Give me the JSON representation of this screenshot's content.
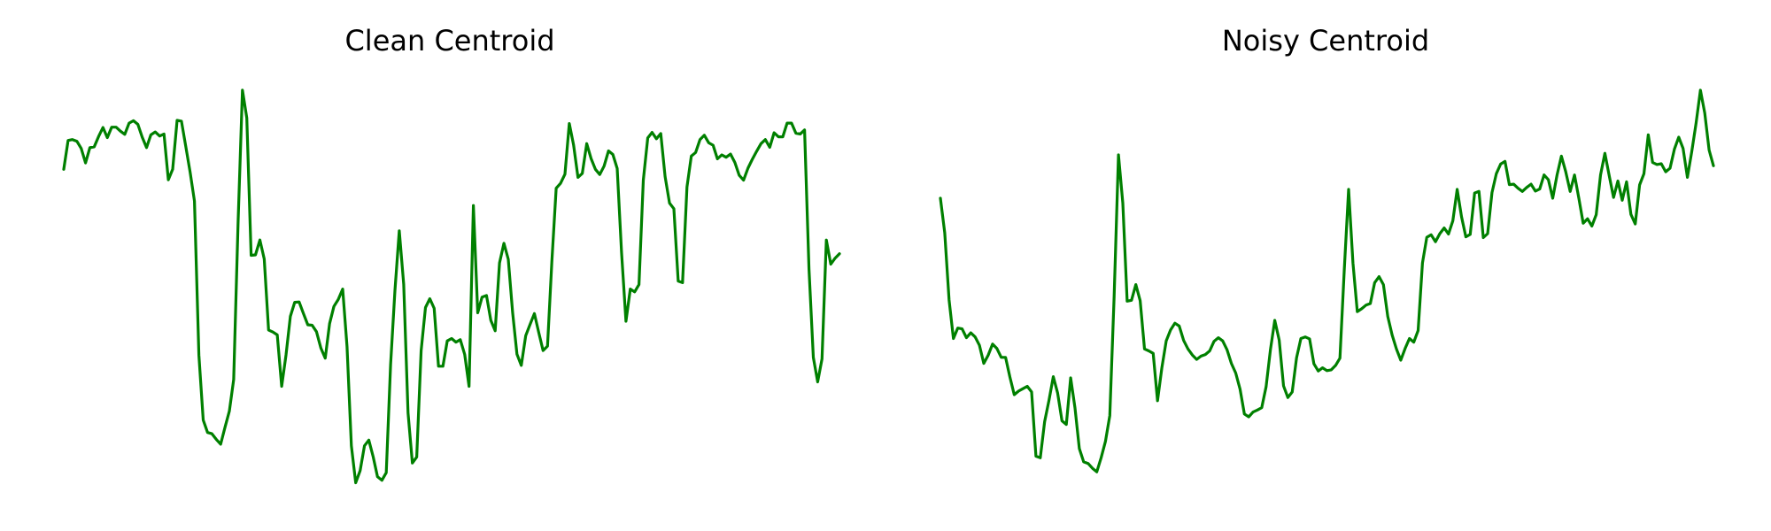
{
  "chart_data": [
    {
      "type": "line",
      "title": "Clean Centroid",
      "xlabel": "",
      "ylabel": "",
      "axes_visible": false,
      "grid": false,
      "color": "#008000",
      "ylim": [
        0,
        1
      ],
      "series": [
        {
          "values": [
            0.79,
            0.862,
            0.864,
            0.86,
            0.842,
            0.806,
            0.844,
            0.846,
            0.872,
            0.894,
            0.869,
            0.895,
            0.895,
            0.885,
            0.877,
            0.905,
            0.911,
            0.902,
            0.87,
            0.844,
            0.876,
            0.883,
            0.873,
            0.878,
            0.764,
            0.79,
            0.912,
            0.91,
            0.847,
            0.783,
            0.711,
            0.328,
            0.166,
            0.135,
            0.132,
            0.118,
            0.106,
            0.148,
            0.188,
            0.267,
            0.66,
            0.987,
            0.918,
            0.576,
            0.577,
            0.614,
            0.567,
            0.39,
            0.385,
            0.378,
            0.25,
            0.328,
            0.424,
            0.459,
            0.46,
            0.431,
            0.403,
            0.402,
            0.386,
            0.345,
            0.32,
            0.406,
            0.449,
            0.466,
            0.492,
            0.349,
            0.102,
            0.01,
            0.04,
            0.102,
            0.116,
            0.075,
            0.025,
            0.016,
            0.035,
            0.304,
            0.488,
            0.637,
            0.504,
            0.184,
            0.059,
            0.074,
            0.339,
            0.446,
            0.468,
            0.444,
            0.3,
            0.3,
            0.363,
            0.369,
            0.36,
            0.366,
            0.329,
            0.25,
            0.7,
            0.433,
            0.472,
            0.476,
            0.414,
            0.388,
            0.557,
            0.606,
            0.566,
            0.434,
            0.33,
            0.302,
            0.376,
            0.404,
            0.431,
            0.384,
            0.339,
            0.35,
            0.56,
            0.743,
            0.755,
            0.778,
            0.904,
            0.85,
            0.77,
            0.78,
            0.854,
            0.817,
            0.79,
            0.777,
            0.798,
            0.836,
            0.827,
            0.792,
            0.584,
            0.412,
            0.492,
            0.485,
            0.503,
            0.763,
            0.868,
            0.882,
            0.866,
            0.879,
            0.772,
            0.706,
            0.692,
            0.512,
            0.508,
            0.746,
            0.823,
            0.832,
            0.864,
            0.875,
            0.856,
            0.85,
            0.816,
            0.826,
            0.82,
            0.828,
            0.807,
            0.775,
            0.763,
            0.793,
            0.815,
            0.835,
            0.854,
            0.864,
            0.845,
            0.881,
            0.871,
            0.871,
            0.905,
            0.905,
            0.88,
            0.878,
            0.888,
            0.542,
            0.322,
            0.261,
            0.318,
            0.614,
            0.554,
            0.569,
            0.58
          ]
        }
      ]
    },
    {
      "type": "line",
      "title": "Noisy Centroid",
      "xlabel": "",
      "ylabel": "",
      "axes_visible": false,
      "grid": false,
      "color": "#008000",
      "ylim": [
        0,
        1
      ],
      "series": [
        {
          "values": [
            0.718,
            0.632,
            0.465,
            0.369,
            0.395,
            0.393,
            0.371,
            0.383,
            0.373,
            0.352,
            0.307,
            0.327,
            0.355,
            0.344,
            0.322,
            0.322,
            0.273,
            0.229,
            0.238,
            0.244,
            0.25,
            0.236,
            0.076,
            0.072,
            0.162,
            0.215,
            0.274,
            0.233,
            0.164,
            0.155,
            0.271,
            0.196,
            0.095,
            0.062,
            0.058,
            0.046,
            0.037,
            0.072,
            0.113,
            0.177,
            0.474,
            0.826,
            0.706,
            0.462,
            0.464,
            0.503,
            0.463,
            0.343,
            0.338,
            0.332,
            0.214,
            0.296,
            0.363,
            0.39,
            0.407,
            0.4,
            0.364,
            0.343,
            0.328,
            0.317,
            0.325,
            0.329,
            0.338,
            0.362,
            0.371,
            0.363,
            0.341,
            0.307,
            0.283,
            0.243,
            0.181,
            0.174,
            0.186,
            0.191,
            0.197,
            0.249,
            0.341,
            0.414,
            0.365,
            0.251,
            0.222,
            0.236,
            0.321,
            0.369,
            0.373,
            0.368,
            0.306,
            0.288,
            0.296,
            0.289,
            0.291,
            0.302,
            0.32,
            0.54,
            0.74,
            0.557,
            0.436,
            0.443,
            0.452,
            0.456,
            0.508,
            0.523,
            0.503,
            0.424,
            0.378,
            0.343,
            0.315,
            0.344,
            0.369,
            0.36,
            0.389,
            0.557,
            0.621,
            0.627,
            0.61,
            0.63,
            0.644,
            0.629,
            0.662,
            0.74,
            0.672,
            0.622,
            0.628,
            0.731,
            0.735,
            0.62,
            0.63,
            0.732,
            0.779,
            0.803,
            0.81,
            0.752,
            0.753,
            0.743,
            0.735,
            0.745,
            0.753,
            0.736,
            0.741,
            0.776,
            0.764,
            0.718,
            0.776,
            0.823,
            0.784,
            0.735,
            0.776,
            0.718,
            0.656,
            0.667,
            0.649,
            0.677,
            0.776,
            0.83,
            0.774,
            0.72,
            0.761,
            0.713,
            0.759,
            0.678,
            0.654,
            0.751,
            0.779,
            0.876,
            0.807,
            0.802,
            0.804,
            0.784,
            0.793,
            0.84,
            0.87,
            0.842,
            0.77,
            0.834,
            0.905,
            0.987,
            0.93,
            0.838,
            0.799
          ]
        }
      ]
    }
  ]
}
